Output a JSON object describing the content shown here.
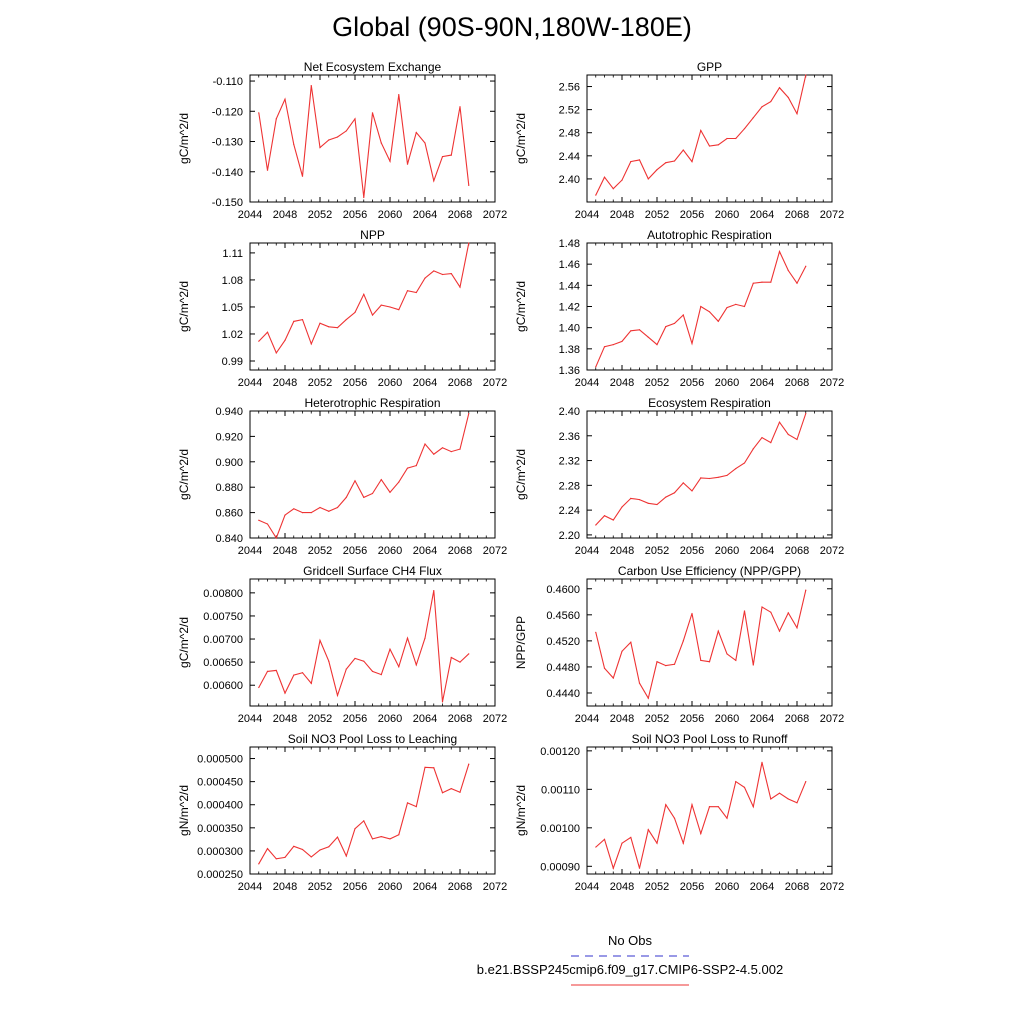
{
  "page": {
    "title": "Global (90S-90N,180W-180E)",
    "legend": {
      "obs_label": "No Obs",
      "run_label": "b.e21.BSSP245cmip6.f09_g17.CMIP6-SSP2-4.5.002",
      "obs_color": "#3333cc",
      "run_color": "#ee3333"
    }
  },
  "chart_data": [
    {
      "type": "line",
      "title": "Net Ecosystem Exchange",
      "ylabel": "gC/m^2/d",
      "xlim": [
        2044,
        2072
      ],
      "ylim": [
        -0.15,
        -0.108
      ],
      "yticks": [
        -0.15,
        -0.14,
        -0.13,
        -0.12,
        -0.11
      ],
      "ytick_labels": [
        "-0.150",
        "-0.140",
        "-0.130",
        "-0.120",
        "-0.110"
      ],
      "xticks": [
        2044,
        2048,
        2052,
        2056,
        2060,
        2064,
        2068,
        2072
      ],
      "xtick_labels": [
        "2044",
        "2048",
        "2052",
        "2056",
        "2060",
        "2064",
        "2068",
        "2072"
      ],
      "x": [
        2045,
        2046,
        2047,
        2048,
        2049,
        2050,
        2051,
        2052,
        2053,
        2054,
        2055,
        2056,
        2057,
        2058,
        2059,
        2060,
        2061,
        2062,
        2063,
        2064,
        2065,
        2066,
        2067,
        2068,
        2069
      ],
      "values": [
        -0.1205,
        -0.1395,
        -0.1225,
        -0.116,
        -0.131,
        -0.1415,
        -0.1115,
        -0.132,
        -0.1295,
        -0.1285,
        -0.1265,
        -0.1225,
        -0.1485,
        -0.1205,
        -0.1305,
        -0.1365,
        -0.1145,
        -0.1375,
        -0.127,
        -0.1305,
        -0.143,
        -0.135,
        -0.1345,
        -0.1185,
        -0.1445
      ]
    },
    {
      "type": "line",
      "title": "GPP",
      "ylabel": "gC/m^2/d",
      "xlim": [
        2044,
        2072
      ],
      "ylim": [
        2.36,
        2.58
      ],
      "yticks": [
        2.4,
        2.44,
        2.48,
        2.52,
        2.56
      ],
      "ytick_labels": [
        "2.40",
        "2.44",
        "2.48",
        "2.52",
        "2.56"
      ],
      "xticks": [
        2044,
        2048,
        2052,
        2056,
        2060,
        2064,
        2068,
        2072
      ],
      "xtick_labels": [
        "2044",
        "2048",
        "2052",
        "2056",
        "2060",
        "2064",
        "2068",
        "2072"
      ],
      "x": [
        2045,
        2046,
        2047,
        2048,
        2049,
        2050,
        2051,
        2052,
        2053,
        2054,
        2055,
        2056,
        2057,
        2058,
        2059,
        2060,
        2061,
        2062,
        2063,
        2064,
        2065,
        2066,
        2067,
        2068,
        2069
      ],
      "values": [
        2.372,
        2.403,
        2.383,
        2.398,
        2.43,
        2.433,
        2.4,
        2.416,
        2.428,
        2.431,
        2.45,
        2.43,
        2.484,
        2.457,
        2.459,
        2.47,
        2.47,
        2.487,
        2.506,
        2.525,
        2.534,
        2.558,
        2.541,
        2.513,
        2.58
      ]
    },
    {
      "type": "line",
      "title": "NPP",
      "ylabel": "gC/m^2/d",
      "xlim": [
        2044,
        2072
      ],
      "ylim": [
        0.98,
        1.121
      ],
      "yticks": [
        0.99,
        1.02,
        1.05,
        1.08,
        1.11
      ],
      "ytick_labels": [
        "0.99",
        "1.02",
        "1.05",
        "1.08",
        "1.11"
      ],
      "xticks": [
        2044,
        2048,
        2052,
        2056,
        2060,
        2064,
        2068,
        2072
      ],
      "xtick_labels": [
        "2044",
        "2048",
        "2052",
        "2056",
        "2060",
        "2064",
        "2068",
        "2072"
      ],
      "x": [
        2045,
        2046,
        2047,
        2048,
        2049,
        2050,
        2051,
        2052,
        2053,
        2054,
        2055,
        2056,
        2057,
        2058,
        2059,
        2060,
        2061,
        2062,
        2063,
        2064,
        2065,
        2066,
        2067,
        2068,
        2069
      ],
      "values": [
        1.012,
        1.022,
        0.999,
        1.013,
        1.034,
        1.036,
        1.009,
        1.032,
        1.028,
        1.027,
        1.036,
        1.044,
        1.064,
        1.041,
        1.052,
        1.05,
        1.047,
        1.068,
        1.066,
        1.082,
        1.09,
        1.086,
        1.087,
        1.072,
        1.121
      ]
    },
    {
      "type": "line",
      "title": "Autotrophic Respiration",
      "ylabel": "gC/m^2/d",
      "xlim": [
        2044,
        2072
      ],
      "ylim": [
        1.36,
        1.48
      ],
      "yticks": [
        1.36,
        1.38,
        1.4,
        1.42,
        1.44,
        1.46,
        1.48
      ],
      "ytick_labels": [
        "1.36",
        "1.38",
        "1.40",
        "1.42",
        "1.44",
        "1.46",
        "1.48"
      ],
      "xticks": [
        2044,
        2048,
        2052,
        2056,
        2060,
        2064,
        2068,
        2072
      ],
      "xtick_labels": [
        "2044",
        "2048",
        "2052",
        "2056",
        "2060",
        "2064",
        "2068",
        "2072"
      ],
      "x": [
        2045,
        2046,
        2047,
        2048,
        2049,
        2050,
        2051,
        2052,
        2053,
        2054,
        2055,
        2056,
        2057,
        2058,
        2059,
        2060,
        2061,
        2062,
        2063,
        2064,
        2065,
        2066,
        2067,
        2068,
        2069
      ],
      "values": [
        1.363,
        1.382,
        1.384,
        1.387,
        1.397,
        1.398,
        1.391,
        1.384,
        1.401,
        1.404,
        1.412,
        1.385,
        1.42,
        1.415,
        1.406,
        1.419,
        1.422,
        1.42,
        1.442,
        1.443,
        1.443,
        1.472,
        1.454,
        1.442,
        1.458
      ]
    },
    {
      "type": "line",
      "title": "Heterotrophic Respiration",
      "ylabel": "gC/m^2/d",
      "xlim": [
        2044,
        2072
      ],
      "ylim": [
        0.84,
        0.94
      ],
      "yticks": [
        0.84,
        0.86,
        0.88,
        0.9,
        0.92,
        0.94
      ],
      "ytick_labels": [
        "0.840",
        "0.860",
        "0.880",
        "0.900",
        "0.920",
        "0.940"
      ],
      "xticks": [
        2044,
        2048,
        2052,
        2056,
        2060,
        2064,
        2068,
        2072
      ],
      "xtick_labels": [
        "2044",
        "2048",
        "2052",
        "2056",
        "2060",
        "2064",
        "2068",
        "2072"
      ],
      "x": [
        2045,
        2046,
        2047,
        2048,
        2049,
        2050,
        2051,
        2052,
        2053,
        2054,
        2055,
        2056,
        2057,
        2058,
        2059,
        2060,
        2061,
        2062,
        2063,
        2064,
        2065,
        2066,
        2067,
        2068,
        2069
      ],
      "values": [
        0.854,
        0.851,
        0.84,
        0.858,
        0.863,
        0.86,
        0.86,
        0.864,
        0.861,
        0.864,
        0.872,
        0.885,
        0.872,
        0.875,
        0.886,
        0.876,
        0.884,
        0.895,
        0.897,
        0.914,
        0.906,
        0.911,
        0.908,
        0.91,
        0.938
      ]
    },
    {
      "type": "line",
      "title": "Ecosystem Respiration",
      "ylabel": "gC/m^2/d",
      "xlim": [
        2044,
        2072
      ],
      "ylim": [
        2.195,
        2.4
      ],
      "yticks": [
        2.2,
        2.24,
        2.28,
        2.32,
        2.36,
        2.4
      ],
      "ytick_labels": [
        "2.20",
        "2.24",
        "2.28",
        "2.32",
        "2.36",
        "2.40"
      ],
      "xticks": [
        2044,
        2048,
        2052,
        2056,
        2060,
        2064,
        2068,
        2072
      ],
      "xtick_labels": [
        "2044",
        "2048",
        "2052",
        "2056",
        "2060",
        "2064",
        "2068",
        "2072"
      ],
      "x": [
        2045,
        2046,
        2047,
        2048,
        2049,
        2050,
        2051,
        2052,
        2053,
        2054,
        2055,
        2056,
        2057,
        2058,
        2059,
        2060,
        2061,
        2062,
        2063,
        2064,
        2065,
        2066,
        2067,
        2068,
        2069
      ],
      "values": [
        2.216,
        2.231,
        2.224,
        2.245,
        2.259,
        2.257,
        2.251,
        2.249,
        2.261,
        2.268,
        2.284,
        2.271,
        2.292,
        2.291,
        2.293,
        2.296,
        2.307,
        2.316,
        2.339,
        2.357,
        2.349,
        2.382,
        2.362,
        2.354,
        2.396
      ]
    },
    {
      "type": "line",
      "title": "Gridcell Surface CH4 Flux",
      "ylabel": "gC/m^2/d",
      "xlim": [
        2044,
        2072
      ],
      "ylim": [
        0.00555,
        0.0083
      ],
      "yticks": [
        0.006,
        0.0065,
        0.007,
        0.0075,
        0.008
      ],
      "ytick_labels": [
        "0.00600",
        "0.00650",
        "0.00700",
        "0.00750",
        "0.00800"
      ],
      "xticks": [
        2044,
        2048,
        2052,
        2056,
        2060,
        2064,
        2068,
        2072
      ],
      "xtick_labels": [
        "2044",
        "2048",
        "2052",
        "2056",
        "2060",
        "2064",
        "2068",
        "2072"
      ],
      "x": [
        2045,
        2046,
        2047,
        2048,
        2049,
        2050,
        2051,
        2052,
        2053,
        2054,
        2055,
        2056,
        2057,
        2058,
        2059,
        2060,
        2061,
        2062,
        2063,
        2064,
        2065,
        2066,
        2067,
        2068,
        2069
      ],
      "values": [
        0.00595,
        0.0063,
        0.00632,
        0.00583,
        0.00622,
        0.00627,
        0.00604,
        0.00697,
        0.00652,
        0.00578,
        0.00635,
        0.00658,
        0.00652,
        0.0063,
        0.00623,
        0.00678,
        0.0064,
        0.00702,
        0.00644,
        0.00702,
        0.00805,
        0.00564,
        0.0066,
        0.0065,
        0.00668
      ]
    },
    {
      "type": "line",
      "title": "Carbon Use Efficiency (NPP/GPP)",
      "ylabel": "NPP/GPP",
      "xlim": [
        2044,
        2072
      ],
      "ylim": [
        0.442,
        0.4615
      ],
      "yticks": [
        0.444,
        0.448,
        0.452,
        0.456,
        0.46
      ],
      "ytick_labels": [
        "0.4440",
        "0.4480",
        "0.4520",
        "0.4560",
        "0.4600"
      ],
      "xticks": [
        2044,
        2048,
        2052,
        2056,
        2060,
        2064,
        2068,
        2072
      ],
      "xtick_labels": [
        "2044",
        "2048",
        "2052",
        "2056",
        "2060",
        "2064",
        "2068",
        "2072"
      ],
      "x": [
        2045,
        2046,
        2047,
        2048,
        2049,
        2050,
        2051,
        2052,
        2053,
        2054,
        2055,
        2056,
        2057,
        2058,
        2059,
        2060,
        2061,
        2062,
        2063,
        2064,
        2065,
        2066,
        2067,
        2068,
        2069
      ],
      "values": [
        0.4533,
        0.4478,
        0.4463,
        0.4504,
        0.4518,
        0.4455,
        0.4432,
        0.4488,
        0.4482,
        0.4484,
        0.452,
        0.4562,
        0.449,
        0.4488,
        0.4535,
        0.45,
        0.449,
        0.4566,
        0.4483,
        0.4572,
        0.4564,
        0.4535,
        0.4563,
        0.454,
        0.4598
      ]
    },
    {
      "type": "line",
      "title": "Soil NO3 Pool Loss to Leaching",
      "ylabel": "gN/m^2/d",
      "xlim": [
        2044,
        2072
      ],
      "ylim": [
        0.00025,
        0.000525
      ],
      "yticks": [
        0.00025,
        0.0003,
        0.00035,
        0.0004,
        0.00045,
        0.0005
      ],
      "ytick_labels": [
        "0.000250",
        "0.000300",
        "0.000350",
        "0.000400",
        "0.000450",
        "0.000500"
      ],
      "xticks": [
        2044,
        2048,
        2052,
        2056,
        2060,
        2064,
        2068,
        2072
      ],
      "xtick_labels": [
        "2044",
        "2048",
        "2052",
        "2056",
        "2060",
        "2064",
        "2068",
        "2072"
      ],
      "x": [
        2045,
        2046,
        2047,
        2048,
        2049,
        2050,
        2051,
        2052,
        2053,
        2054,
        2055,
        2056,
        2057,
        2058,
        2059,
        2060,
        2061,
        2062,
        2063,
        2064,
        2065,
        2066,
        2067,
        2068,
        2069
      ],
      "values": [
        0.000272,
        0.000305,
        0.000283,
        0.000286,
        0.00031,
        0.000303,
        0.000287,
        0.000302,
        0.000309,
        0.00033,
        0.000289,
        0.000348,
        0.000365,
        0.000326,
        0.000331,
        0.000326,
        0.000335,
        0.000404,
        0.000396,
        0.000481,
        0.00048,
        0.000426,
        0.000435,
        0.000427,
        0.000488
      ]
    },
    {
      "type": "line",
      "title": "Soil NO3 Pool Loss to Runoff",
      "ylabel": "gN/m^2/d",
      "xlim": [
        2044,
        2072
      ],
      "ylim": [
        0.00088,
        0.00121
      ],
      "yticks": [
        0.0009,
        0.001,
        0.0011,
        0.0012
      ],
      "ytick_labels": [
        "0.00090",
        "0.00100",
        "0.00110",
        "0.00120"
      ],
      "xticks": [
        2044,
        2048,
        2052,
        2056,
        2060,
        2064,
        2068,
        2072
      ],
      "xtick_labels": [
        "2044",
        "2048",
        "2052",
        "2056",
        "2060",
        "2064",
        "2068",
        "2072"
      ],
      "x": [
        2045,
        2046,
        2047,
        2048,
        2049,
        2050,
        2051,
        2052,
        2053,
        2054,
        2055,
        2056,
        2057,
        2058,
        2059,
        2060,
        2061,
        2062,
        2063,
        2064,
        2065,
        2066,
        2067,
        2068,
        2069
      ],
      "values": [
        0.00095,
        0.00097,
        0.000895,
        0.00096,
        0.000975,
        0.000895,
        0.000995,
        0.00096,
        0.00106,
        0.001025,
        0.00096,
        0.00106,
        0.000985,
        0.001055,
        0.001055,
        0.001025,
        0.00112,
        0.001105,
        0.001055,
        0.00117,
        0.001075,
        0.00109,
        0.001075,
        0.001065,
        0.00112
      ]
    }
  ]
}
